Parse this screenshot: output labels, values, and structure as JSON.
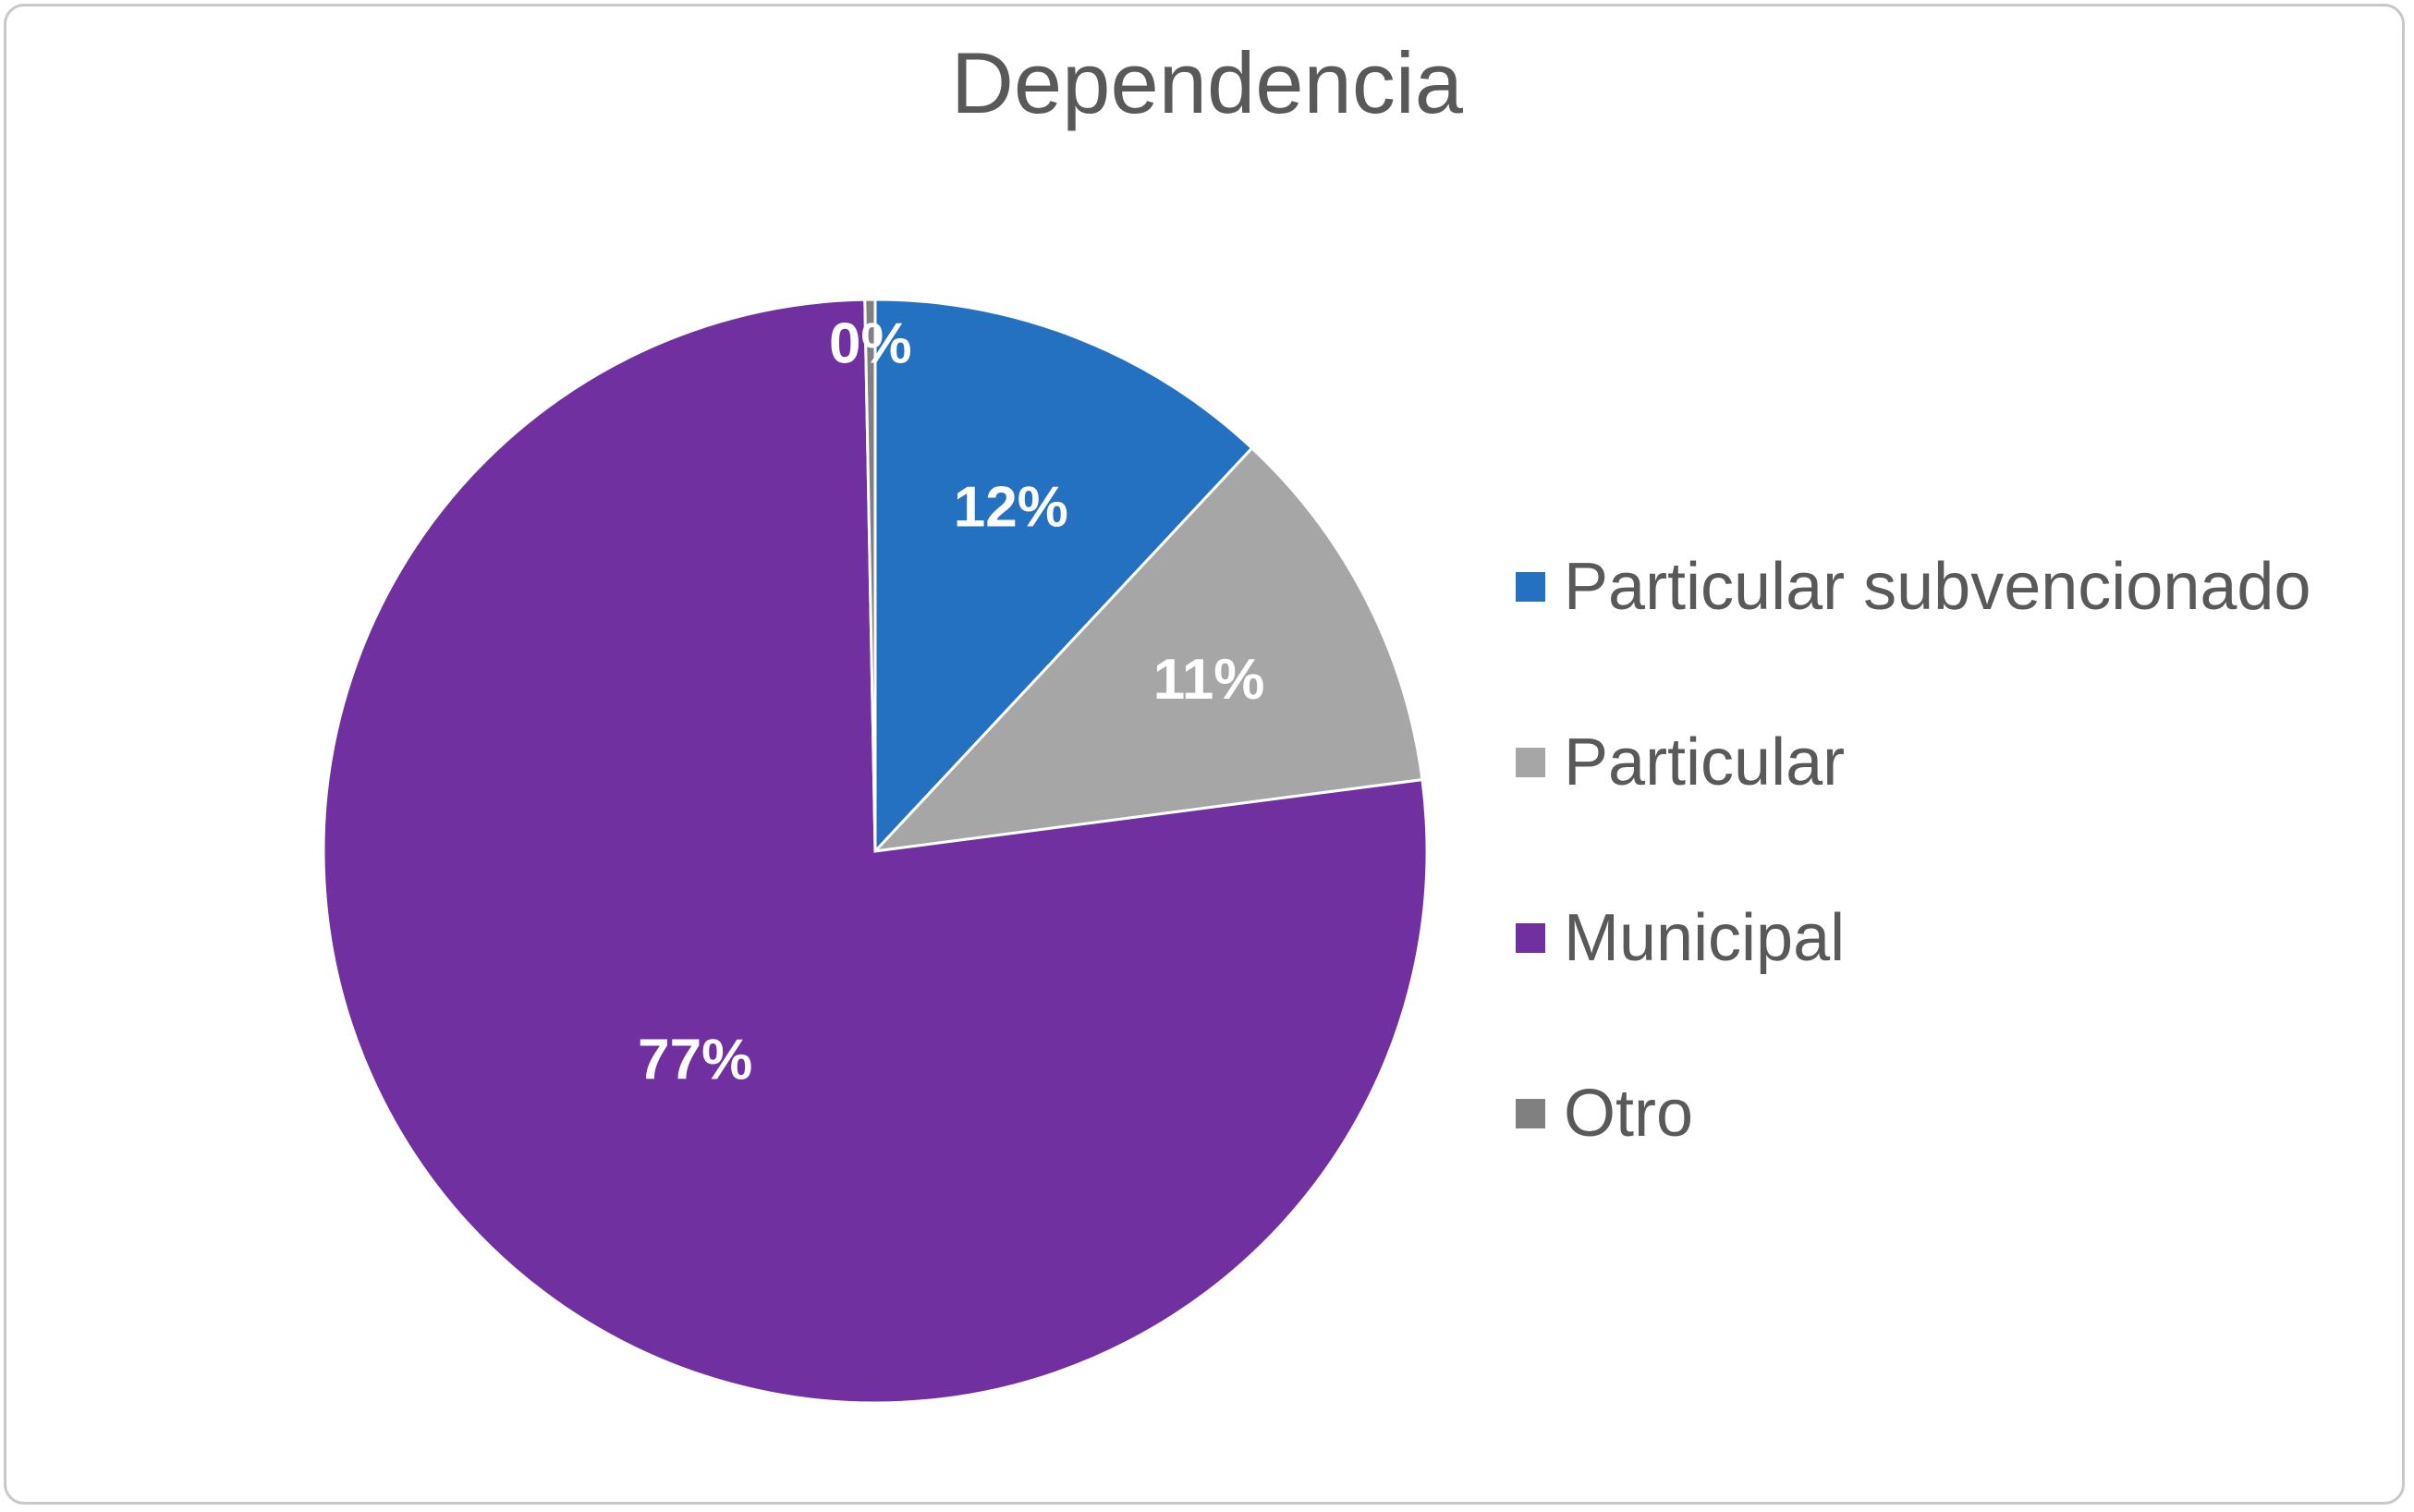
{
  "chart_data": {
    "type": "pie",
    "title": "Dependencia",
    "categories": [
      "Particular subvencionado",
      "Particular",
      "Municipal",
      "Otro"
    ],
    "values": [
      12,
      11,
      77,
      0.3
    ],
    "data_labels": [
      "12%",
      "11%",
      "77%",
      "0%"
    ],
    "colors": [
      "#2471c2",
      "#a6a6a6",
      "#7030a0",
      "#808080"
    ],
    "legend_position": "right",
    "start_angle": "top, clockwise"
  }
}
